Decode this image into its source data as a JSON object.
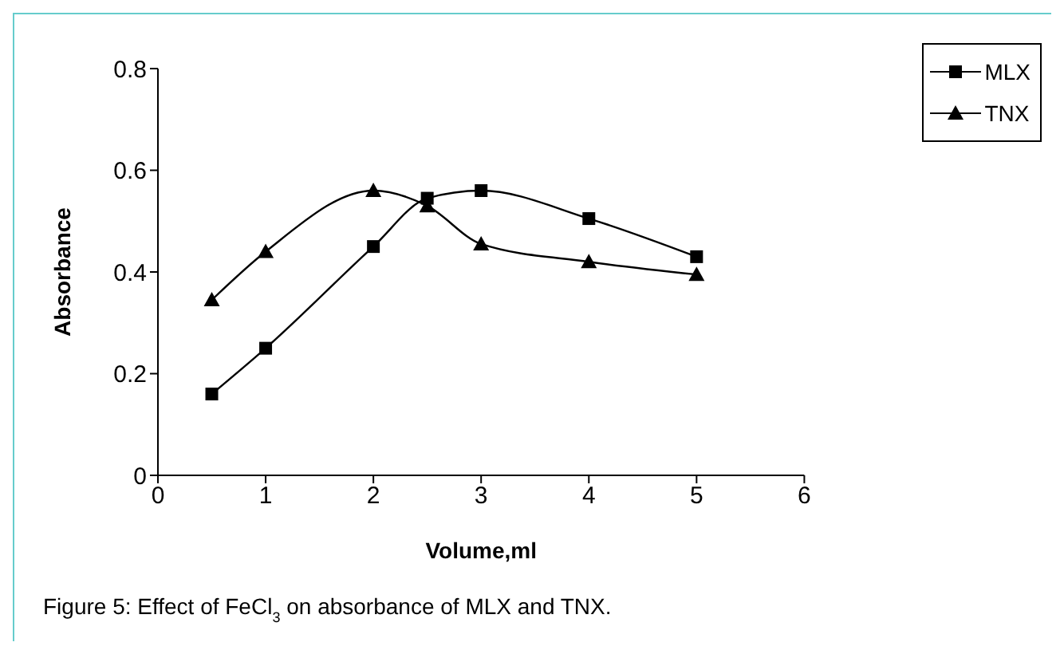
{
  "chart_data": {
    "type": "line",
    "xlabel": "Volume,ml",
    "ylabel": "Absorbance",
    "annotations": [
      "Figure 5: Effect of FeCl$_{3}$ on absorbance of MLX and TNX."
    ],
    "x": [
      0.5,
      1,
      2,
      2.5,
      3,
      4,
      5
    ],
    "series": [
      {
        "name": "MLX",
        "color": "#000000",
        "marker": "square",
        "values": [
          0.16,
          0.25,
          0.45,
          0.545,
          0.56,
          0.505,
          0.43
        ]
      },
      {
        "name": "TNX",
        "color": "#000000",
        "marker": "triangle",
        "values": [
          0.345,
          0.44,
          0.56,
          0.53,
          0.455,
          0.42,
          0.395
        ]
      }
    ],
    "xlim": [
      0,
      6
    ],
    "xticks": [
      0,
      1,
      2,
      3,
      4,
      5,
      6
    ],
    "ylim": [
      0,
      0.8
    ],
    "yticks": [
      0,
      0.2,
      0.4,
      0.6,
      0.8
    ],
    "grid": false,
    "legend": "top right",
    "line_style": "solid"
  }
}
